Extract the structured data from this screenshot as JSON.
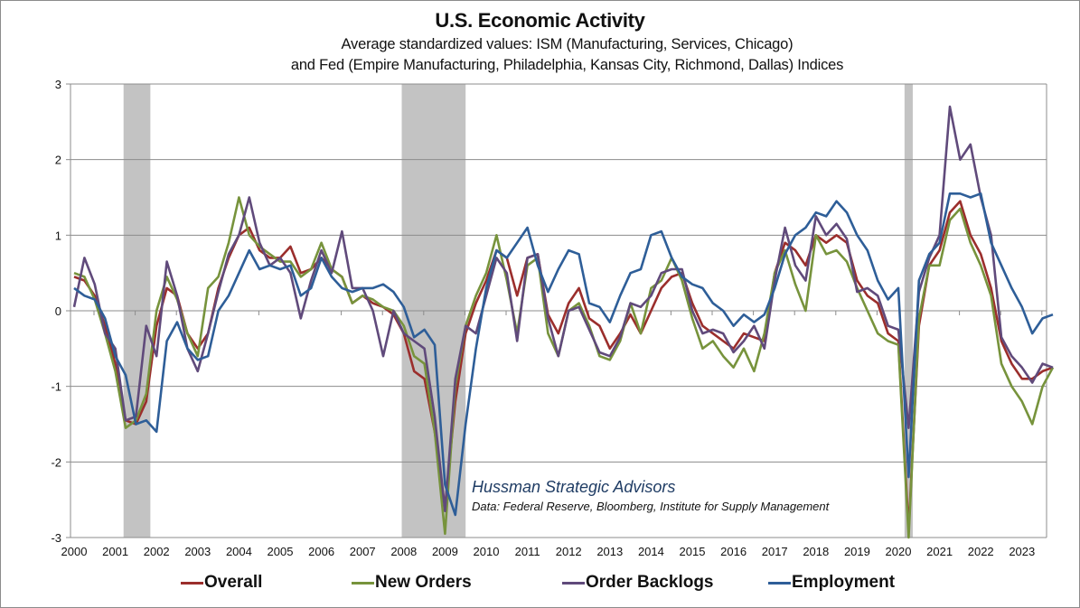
{
  "chart_data": {
    "type": "line",
    "title": "U.S. Economic Activity",
    "subtitle_lines": [
      "Average standardized values: ISM (Manufacturing, Services, Chicago)",
      "and Fed (Empire Manufacturing, Philadelphia, Kansas City, Richmond, Dallas) Indices"
    ],
    "xlabel": "",
    "ylabel": "",
    "xlim": [
      2000,
      2024
    ],
    "ylim": [
      -3,
      3
    ],
    "x_tick_labels": [
      "2000",
      "2001",
      "2002",
      "2003",
      "2004",
      "2005",
      "2006",
      "2007",
      "2008",
      "2009",
      "2010",
      "2011",
      "2012",
      "2013",
      "2014",
      "2015",
      "2016",
      "2017",
      "2018",
      "2019",
      "2020",
      "2021",
      "2022",
      "2023"
    ],
    "y_tick_labels": [
      "3",
      "2",
      "1",
      "0",
      "-1",
      "-2",
      "-3"
    ],
    "y_ticks": [
      3,
      2,
      1,
      0,
      -1,
      -2,
      -3
    ],
    "grid": "horizontal",
    "legend_position": "bottom",
    "recession_shading": [
      {
        "start": 2001.2,
        "end": 2001.85
      },
      {
        "start": 2007.95,
        "end": 2009.5
      },
      {
        "start": 2020.15,
        "end": 2020.35
      }
    ],
    "annotation": {
      "source_firm": "Hussman Strategic Advisors",
      "data_note": "Data: Federal Reserve, Bloomberg, Institute for Supply Management"
    },
    "x": [
      2000.0,
      2000.25,
      2000.5,
      2000.75,
      2001.0,
      2001.25,
      2001.5,
      2001.75,
      2002.0,
      2002.25,
      2002.5,
      2002.75,
      2003.0,
      2003.25,
      2003.5,
      2003.75,
      2004.0,
      2004.25,
      2004.5,
      2004.75,
      2005.0,
      2005.25,
      2005.5,
      2005.75,
      2006.0,
      2006.25,
      2006.5,
      2006.75,
      2007.0,
      2007.25,
      2007.5,
      2007.75,
      2008.0,
      2008.25,
      2008.5,
      2008.75,
      2009.0,
      2009.25,
      2009.5,
      2009.75,
      2010.0,
      2010.25,
      2010.5,
      2010.75,
      2011.0,
      2011.25,
      2011.5,
      2011.75,
      2012.0,
      2012.25,
      2012.5,
      2012.75,
      2013.0,
      2013.25,
      2013.5,
      2013.75,
      2014.0,
      2014.25,
      2014.5,
      2014.75,
      2015.0,
      2015.25,
      2015.5,
      2015.75,
      2016.0,
      2016.25,
      2016.5,
      2016.75,
      2017.0,
      2017.25,
      2017.5,
      2017.75,
      2018.0,
      2018.25,
      2018.5,
      2018.75,
      2019.0,
      2019.25,
      2019.5,
      2019.75,
      2020.0,
      2020.25,
      2020.5,
      2020.75,
      2021.0,
      2021.25,
      2021.5,
      2021.75,
      2022.0,
      2022.25,
      2022.5,
      2022.75,
      2023.0,
      2023.25,
      2023.5,
      2023.75
    ],
    "series": [
      {
        "name": "Overall",
        "color": "#9b2e2c",
        "values": [
          0.45,
          0.4,
          0.2,
          -0.2,
          -0.7,
          -1.45,
          -1.5,
          -1.2,
          -0.2,
          0.3,
          0.2,
          -0.3,
          -0.5,
          -0.3,
          0.3,
          0.7,
          1.0,
          1.1,
          0.8,
          0.7,
          0.7,
          0.85,
          0.5,
          0.55,
          0.7,
          0.55,
          0.45,
          0.1,
          0.2,
          0.1,
          0.05,
          -0.05,
          -0.3,
          -0.8,
          -0.9,
          -1.6,
          -2.6,
          -1.2,
          -0.3,
          0.1,
          0.4,
          0.8,
          0.7,
          0.2,
          0.7,
          0.75,
          -0.05,
          -0.3,
          0.1,
          0.3,
          -0.1,
          -0.2,
          -0.5,
          -0.3,
          -0.05,
          -0.3,
          0.0,
          0.3,
          0.45,
          0.5,
          0.1,
          -0.2,
          -0.3,
          -0.4,
          -0.5,
          -0.3,
          -0.35,
          -0.4,
          0.5,
          0.9,
          0.8,
          0.6,
          1.0,
          0.9,
          1.0,
          0.9,
          0.4,
          0.2,
          0.1,
          -0.3,
          -0.4,
          -2.9,
          -0.2,
          0.6,
          0.8,
          1.3,
          1.45,
          1.0,
          0.75,
          0.3,
          -0.4,
          -0.7,
          -0.9,
          -0.9,
          -0.8,
          -0.75
        ]
      },
      {
        "name": "New Orders",
        "color": "#77933c",
        "values": [
          0.5,
          0.45,
          0.15,
          -0.3,
          -0.8,
          -1.55,
          -1.45,
          -1.1,
          0.0,
          0.45,
          0.15,
          -0.3,
          -0.6,
          0.3,
          0.45,
          0.9,
          1.5,
          1.0,
          0.85,
          0.75,
          0.65,
          0.65,
          0.45,
          0.55,
          0.9,
          0.55,
          0.45,
          0.1,
          0.2,
          0.15,
          0.05,
          0.0,
          -0.2,
          -0.6,
          -0.7,
          -1.6,
          -2.95,
          -1.0,
          -0.2,
          0.2,
          0.5,
          1.0,
          0.4,
          -0.3,
          0.6,
          0.7,
          -0.3,
          -0.6,
          0.0,
          0.1,
          -0.2,
          -0.6,
          -0.65,
          -0.4,
          0.1,
          -0.3,
          0.3,
          0.4,
          0.7,
          0.4,
          -0.1,
          -0.5,
          -0.4,
          -0.6,
          -0.75,
          -0.5,
          -0.8,
          -0.3,
          0.5,
          0.8,
          0.35,
          0.0,
          1.0,
          0.75,
          0.8,
          0.65,
          0.3,
          0.0,
          -0.3,
          -0.4,
          -0.45,
          -3.0,
          -0.1,
          0.6,
          0.6,
          1.2,
          1.35,
          0.9,
          0.6,
          0.2,
          -0.7,
          -1.0,
          -1.2,
          -1.5,
          -1.0,
          -0.75
        ]
      },
      {
        "name": "Order Backlogs",
        "color": "#604a7b",
        "values": [
          0.05,
          0.7,
          0.35,
          -0.3,
          -0.5,
          -1.45,
          -1.4,
          -0.2,
          -0.6,
          0.65,
          0.2,
          -0.5,
          -0.8,
          -0.3,
          0.25,
          0.75,
          1.0,
          1.5,
          0.9,
          0.6,
          0.7,
          0.5,
          -0.1,
          0.4,
          0.8,
          0.5,
          1.05,
          0.3,
          0.3,
          0.0,
          -0.6,
          0.0,
          -0.3,
          -0.4,
          -0.5,
          -1.4,
          -2.65,
          -0.9,
          -0.2,
          -0.3,
          0.2,
          0.7,
          0.5,
          -0.4,
          0.7,
          0.75,
          -0.1,
          -0.6,
          0.0,
          0.05,
          -0.25,
          -0.55,
          -0.6,
          -0.35,
          0.1,
          0.05,
          0.2,
          0.5,
          0.55,
          0.55,
          0.0,
          -0.3,
          -0.25,
          -0.3,
          -0.55,
          -0.4,
          -0.2,
          -0.5,
          0.4,
          1.1,
          0.6,
          0.4,
          1.25,
          1.0,
          1.15,
          0.95,
          0.25,
          0.3,
          0.2,
          -0.2,
          -0.25,
          -1.55,
          0.25,
          0.7,
          1.0,
          2.7,
          2.0,
          2.2,
          1.5,
          1.0,
          -0.35,
          -0.6,
          -0.75,
          -0.95,
          -0.7,
          -0.75
        ]
      },
      {
        "name": "Employment",
        "color": "#2e5e98",
        "values": [
          0.3,
          0.2,
          0.15,
          -0.1,
          -0.6,
          -0.85,
          -1.5,
          -1.45,
          -1.6,
          -0.4,
          -0.15,
          -0.5,
          -0.65,
          -0.6,
          0.0,
          0.2,
          0.5,
          0.8,
          0.55,
          0.6,
          0.55,
          0.6,
          0.2,
          0.3,
          0.7,
          0.45,
          0.3,
          0.25,
          0.3,
          0.3,
          0.35,
          0.25,
          0.05,
          -0.35,
          -0.25,
          -0.45,
          -2.3,
          -2.7,
          -1.5,
          -0.5,
          0.3,
          0.8,
          0.7,
          0.9,
          1.1,
          0.6,
          0.25,
          0.55,
          0.8,
          0.75,
          0.1,
          0.05,
          -0.15,
          0.2,
          0.5,
          0.55,
          1.0,
          1.05,
          0.7,
          0.45,
          0.35,
          0.3,
          0.1,
          0.0,
          -0.2,
          -0.05,
          -0.15,
          -0.05,
          0.3,
          0.75,
          1.0,
          1.1,
          1.3,
          1.25,
          1.45,
          1.3,
          1.0,
          0.8,
          0.4,
          0.15,
          0.3,
          -2.2,
          0.4,
          0.75,
          0.9,
          1.55,
          1.55,
          1.5,
          1.55,
          0.9,
          0.6,
          0.3,
          0.05,
          -0.3,
          -0.1,
          -0.05
        ]
      }
    ]
  }
}
